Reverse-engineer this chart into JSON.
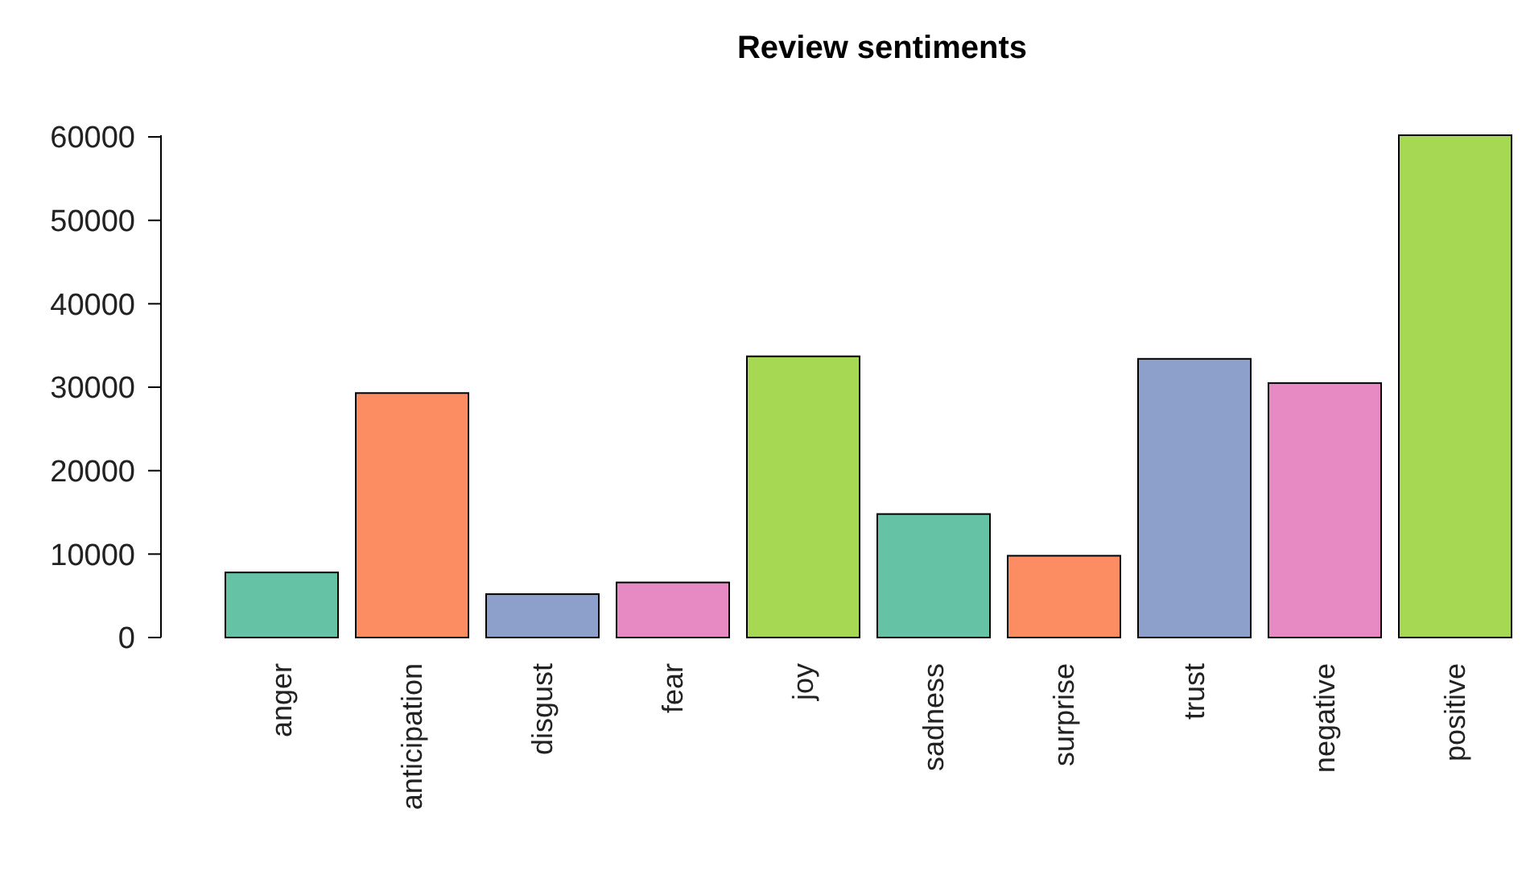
{
  "chart_data": {
    "type": "bar",
    "title": "Review sentiments",
    "categories": [
      "anger",
      "anticipation",
      "disgust",
      "fear",
      "joy",
      "sadness",
      "surprise",
      "trust",
      "negative",
      "positive"
    ],
    "values": [
      7800,
      29300,
      5200,
      6600,
      33700,
      14800,
      9800,
      33400,
      30500,
      60200
    ],
    "colors": [
      "#66c2a5",
      "#fc8d62",
      "#8da0cb",
      "#e78ac3",
      "#a6d854",
      "#66c2a5",
      "#fc8d62",
      "#8da0cb",
      "#e78ac3",
      "#a6d854"
    ],
    "ylim": [
      0,
      60200
    ],
    "yticks": [
      0,
      10000,
      20000,
      30000,
      40000,
      50000,
      60000
    ],
    "grid": false
  }
}
